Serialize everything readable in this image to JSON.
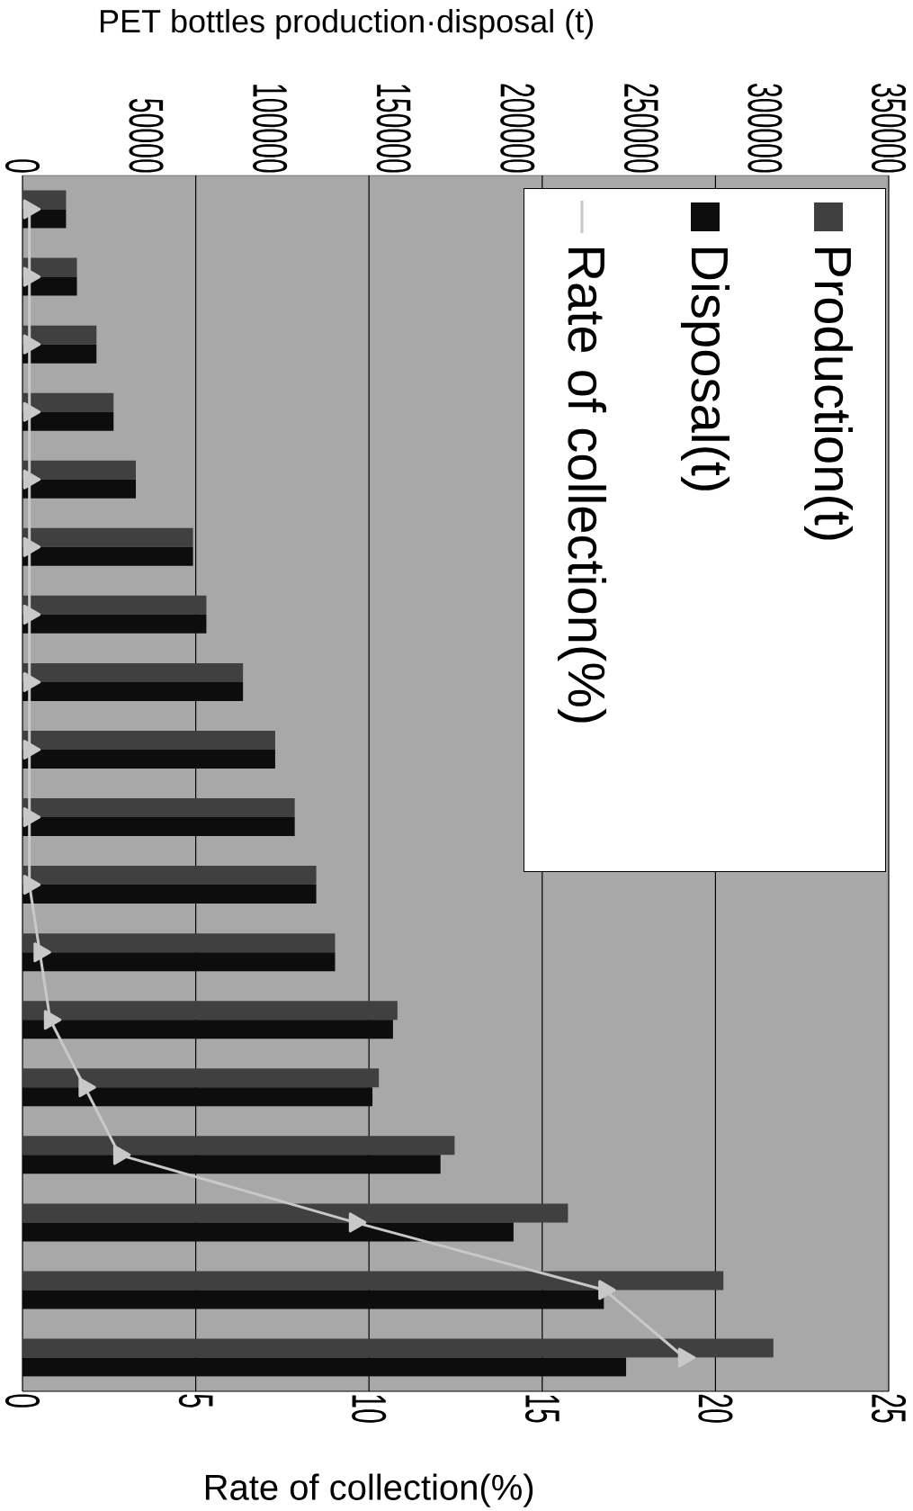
{
  "chart_data": {
    "type": "bar",
    "orientation": "horizontal",
    "xlabel": "Rate of collection(%)",
    "x2label": "PET bottles production·disposal (t)",
    "categories": [
      null,
      null,
      null,
      null,
      null,
      null,
      null,
      null,
      null,
      null,
      null,
      null,
      null,
      null,
      null,
      null,
      null,
      null
    ],
    "xlim": [
      0,
      25
    ],
    "xticks": [
      0,
      5,
      10,
      15,
      20,
      25
    ],
    "x2lim": [
      0,
      350000
    ],
    "x2ticks": [
      0,
      50000,
      100000,
      150000,
      200000,
      250000,
      300000,
      350000
    ],
    "grid": "x",
    "legend": "top right",
    "marker": "triangle",
    "series": [
      {
        "name": "Production(t)",
        "color": "#404040",
        "axis": "x2",
        "values": [
          17600,
          22000,
          29900,
          36800,
          45800,
          68900,
          74300,
          89100,
          102100,
          110000,
          118700,
          126300,
          151500,
          144000,
          174600,
          220400,
          283200,
          303400
        ]
      },
      {
        "name": "Disposal(t)",
        "color": "#0d0d0d",
        "axis": "x2",
        "values": [
          17600,
          22000,
          29900,
          36800,
          45800,
          68900,
          74300,
          89100,
          102100,
          110000,
          118700,
          126300,
          149700,
          141400,
          168900,
          198400,
          234900,
          243900
        ]
      },
      {
        "name": "Rate of collection(%)",
        "type": "line",
        "color": "#c8c8c8",
        "values": [
          0.2,
          0.2,
          0.2,
          0.2,
          0.2,
          0.2,
          0.2,
          0.2,
          0.2,
          0.2,
          0.2,
          0.5,
          0.8,
          1.8,
          2.8,
          9.6,
          16.8,
          19.1
        ]
      }
    ]
  }
}
